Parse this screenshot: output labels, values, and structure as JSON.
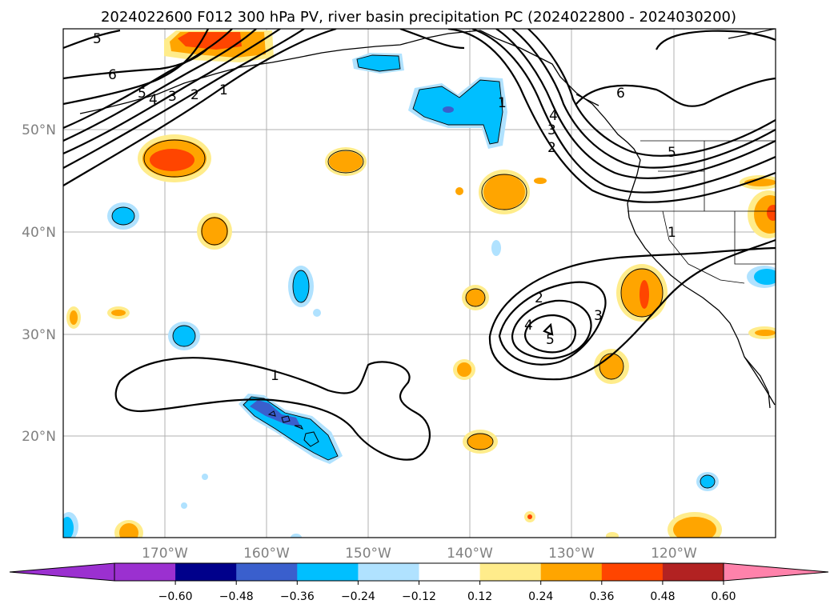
{
  "title": "2024022600 F012 300 hPa PV, river basin precipitation PC (2024022800 - 2024030200)",
  "latitude_labels": [
    "50°N",
    "40°N",
    "30°N",
    "20°N"
  ],
  "longitude_labels": [
    "170°W",
    "160°W",
    "150°W",
    "140°W",
    "130°W",
    "120°W"
  ],
  "colorbar": {
    "tick_labels": [
      "−0.60",
      "−0.48",
      "−0.36",
      "−0.24",
      "−0.12",
      "0.12",
      "0.24",
      "0.36",
      "0.48",
      "0.60"
    ],
    "colors": {
      "under": "#9b30d0",
      "bins": [
        "#00008b",
        "#3a5fcd",
        "#00bfff",
        "#b0e2ff",
        "#ffffff",
        "#ffec8b",
        "#ffa500",
        "#ff4500",
        "#b22222"
      ],
      "over": "#ff82ab",
      "first_bin": "#9b30d0"
    }
  },
  "pv_contour_labels": {
    "nw_5a": "5",
    "nw_6": "6",
    "nw_5b": "5",
    "nw_4": "4",
    "nw_3": "3",
    "nw_2": "2",
    "nw_1": "1",
    "ne_1": "1",
    "ne_4": "4",
    "ne_3": "3",
    "ne_2": "2",
    "ne_6": "6",
    "ne_5": "5",
    "e_1": "1",
    "sw_1": "1",
    "low_2": "2",
    "low_4": "4",
    "low_5": "5",
    "low_3": "3"
  }
}
